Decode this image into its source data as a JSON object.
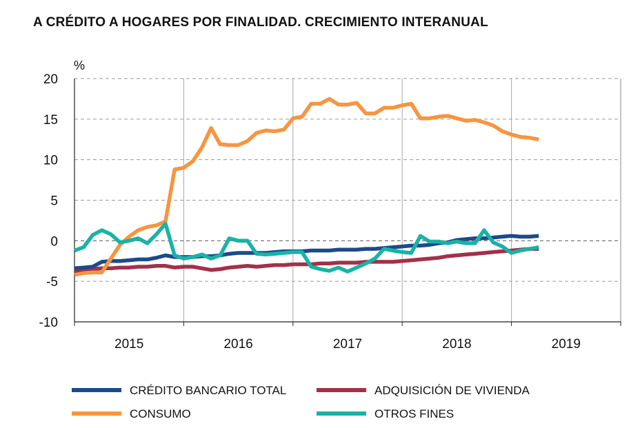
{
  "chart_data": {
    "type": "line",
    "title": "A  CRÉDITO A HOGARES POR FINALIDAD. CRECIMIENTO INTERANUAL",
    "ylabel": "%",
    "ylim": [
      -10,
      20
    ],
    "yticks": [
      20,
      15,
      10,
      5,
      0,
      -5,
      -10
    ],
    "xlim": [
      2015,
      2020
    ],
    "xticks": [
      {
        "label": "2015",
        "value": 2015.5
      },
      {
        "label": "2016",
        "value": 2016.5
      },
      {
        "label": "2017",
        "value": 2017.5
      },
      {
        "label": "2018",
        "value": 2018.5
      },
      {
        "label": "2019",
        "value": 2019.5
      }
    ],
    "x_start": 2015.0,
    "x_step": 0.08333,
    "series": [
      {
        "name": "CRÉDITO BANCARIO TOTAL",
        "color": "#1c4a8a",
        "values": [
          -3.4,
          -3.3,
          -3.2,
          -2.6,
          -2.5,
          -2.5,
          -2.4,
          -2.3,
          -2.3,
          -2.1,
          -1.8,
          -2.0,
          -2.0,
          -2.0,
          -1.9,
          -1.9,
          -1.8,
          -1.6,
          -1.5,
          -1.5,
          -1.5,
          -1.5,
          -1.4,
          -1.3,
          -1.3,
          -1.3,
          -1.2,
          -1.2,
          -1.2,
          -1.1,
          -1.1,
          -1.1,
          -1.0,
          -1.0,
          -0.9,
          -0.8,
          -0.7,
          -0.6,
          -0.6,
          -0.5,
          -0.3,
          -0.2,
          0.1,
          0.2,
          0.3,
          0.3,
          0.4,
          0.5,
          0.6,
          0.5,
          0.5,
          0.6
        ]
      },
      {
        "name": "ADQUISICIÓN DE VIVIENDA",
        "color": "#a3304a",
        "values": [
          -3.8,
          -3.7,
          -3.5,
          -3.4,
          -3.4,
          -3.3,
          -3.3,
          -3.2,
          -3.2,
          -3.1,
          -3.1,
          -3.3,
          -3.2,
          -3.2,
          -3.4,
          -3.6,
          -3.5,
          -3.3,
          -3.2,
          -3.1,
          -3.2,
          -3.1,
          -3.0,
          -3.0,
          -2.9,
          -2.9,
          -2.9,
          -2.8,
          -2.8,
          -2.7,
          -2.7,
          -2.7,
          -2.6,
          -2.6,
          -2.6,
          -2.6,
          -2.5,
          -2.4,
          -2.3,
          -2.2,
          -2.1,
          -1.9,
          -1.8,
          -1.7,
          -1.6,
          -1.5,
          -1.4,
          -1.3,
          -1.2,
          -1.1,
          -1.0,
          -1.0
        ]
      },
      {
        "name": "CONSUMO",
        "color": "#f79540",
        "values": [
          -4.2,
          -4.0,
          -3.9,
          -3.9,
          -2.2,
          -0.5,
          0.5,
          1.3,
          1.7,
          1.9,
          2.4,
          8.8,
          9.0,
          9.8,
          11.5,
          13.9,
          11.9,
          11.8,
          11.8,
          12.3,
          13.3,
          13.6,
          13.5,
          13.7,
          15.1,
          15.3,
          16.9,
          16.9,
          17.5,
          16.8,
          16.8,
          17.0,
          15.7,
          15.7,
          16.4,
          16.4,
          16.7,
          16.9,
          15.1,
          15.1,
          15.3,
          15.4,
          15.1,
          14.8,
          14.9,
          14.6,
          14.2,
          13.5,
          13.1,
          12.8,
          12.7,
          12.5
        ]
      },
      {
        "name": "OTROS FINES",
        "color": "#19b3a6",
        "values": [
          -1.2,
          -0.8,
          0.7,
          1.3,
          0.8,
          -0.2,
          0.0,
          0.3,
          -0.3,
          0.8,
          2.1,
          -1.8,
          -2.2,
          -2.0,
          -1.7,
          -2.2,
          -1.8,
          0.3,
          0.0,
          0.0,
          -1.6,
          -1.7,
          -1.6,
          -1.5,
          -1.4,
          -1.4,
          -3.2,
          -3.5,
          -3.7,
          -3.3,
          -3.8,
          -3.3,
          -2.8,
          -2.2,
          -1.0,
          -1.2,
          -1.4,
          -1.5,
          0.6,
          -0.1,
          -0.1,
          -0.3,
          -0.1,
          -0.3,
          -0.3,
          1.3,
          -0.2,
          -0.7,
          -1.5,
          -1.2,
          -1.0,
          -0.8
        ]
      }
    ],
    "legend": {
      "placement": "bottom",
      "items": [
        "CRÉDITO BANCARIO TOTAL",
        "ADQUISICIÓN DE VIVIENDA",
        "CONSUMO",
        "OTROS FINES"
      ]
    }
  }
}
